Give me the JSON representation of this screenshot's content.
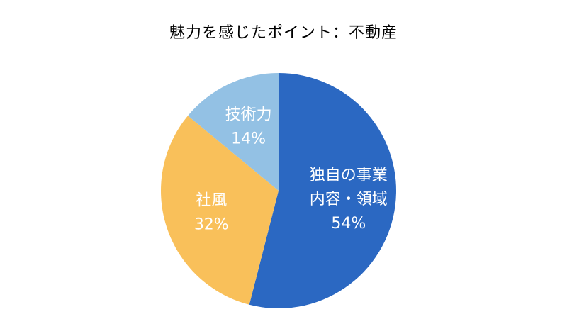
{
  "chart_data": {
    "type": "pie",
    "title": "魅力を感じたポイント：不動産",
    "start_angle_deg": 0,
    "direction": "clockwise",
    "slices": [
      {
        "label_lines": [
          "独自の事業",
          "内容・領域"
        ],
        "value": 54,
        "value_label": "54%",
        "color": "#2b68c2"
      },
      {
        "label_lines": [
          "社風"
        ],
        "value": 32,
        "value_label": "32%",
        "color": "#f9c05a"
      },
      {
        "label_lines": [
          "技術力"
        ],
        "value": 14,
        "value_label": "14%",
        "color": "#93c1e4"
      }
    ]
  }
}
